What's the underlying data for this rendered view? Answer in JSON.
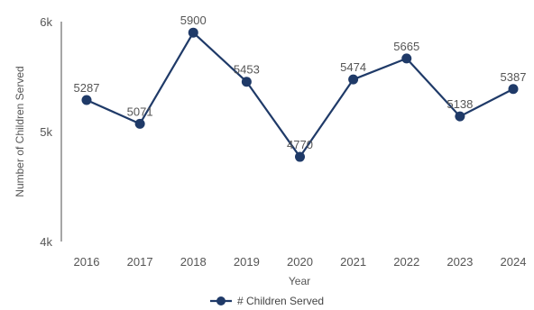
{
  "chart_data": {
    "type": "line",
    "x": [
      "2016",
      "2017",
      "2018",
      "2019",
      "2020",
      "2021",
      "2022",
      "2023",
      "2024"
    ],
    "series": [
      {
        "name": "# Children Served",
        "values": [
          5287,
          5071,
          5900,
          5453,
          4770,
          5474,
          5665,
          5138,
          5387
        ],
        "color": "#1f3a68"
      }
    ],
    "data_labels": [
      "5287",
      "5071",
      "5900",
      "5453",
      "4770",
      "5474",
      "5665",
      "5138",
      "5387"
    ],
    "xlabel": "Year",
    "ylabel": "Number of Children Served",
    "ylim": [
      4000,
      6000
    ],
    "yticks": [
      {
        "value": 4000,
        "label": "4k"
      },
      {
        "value": 5000,
        "label": "5k"
      },
      {
        "value": 6000,
        "label": "6k"
      }
    ],
    "grid": false,
    "legend": "bottom-center",
    "axis_color": "#888888"
  }
}
